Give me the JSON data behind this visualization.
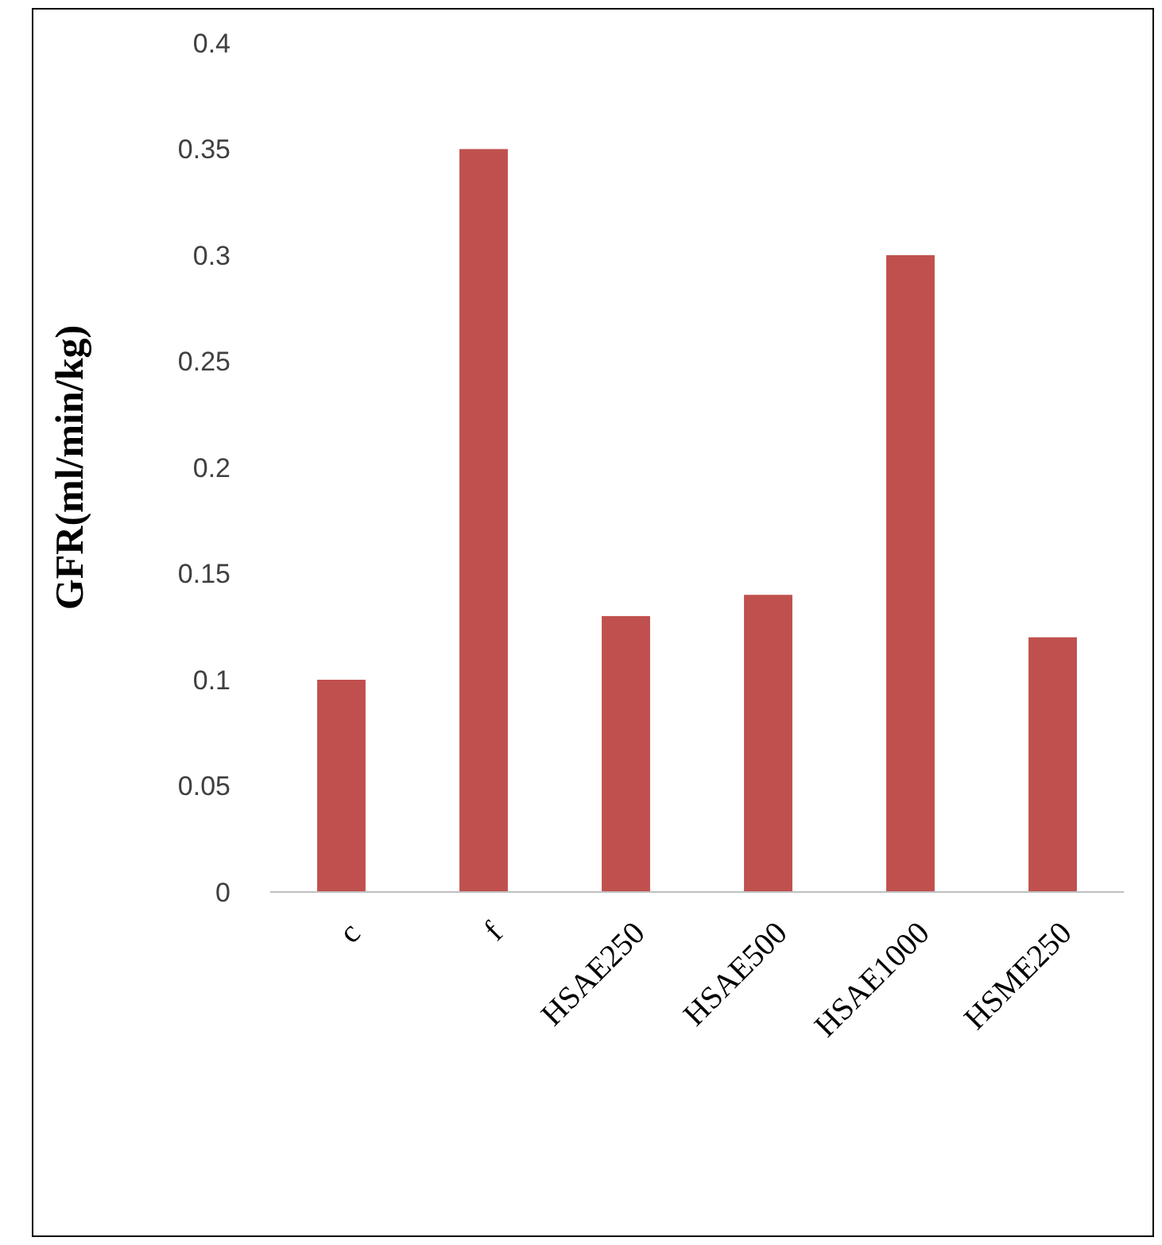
{
  "chart_data": {
    "type": "bar",
    "ylabel": "GFR(ml/min/kg)",
    "categories": [
      "c",
      "f",
      "HSAE250",
      "HSAE500",
      "HSAE1000",
      "HSME250"
    ],
    "values": [
      0.1,
      0.35,
      0.13,
      0.14,
      0.3,
      0.12
    ],
    "color": "#c0504d",
    "ylim": [
      0,
      0.4
    ],
    "yticks": [
      0,
      0.05,
      0.1,
      0.15,
      0.2,
      0.25,
      0.3,
      0.35,
      0.4
    ],
    "grid": false
  }
}
